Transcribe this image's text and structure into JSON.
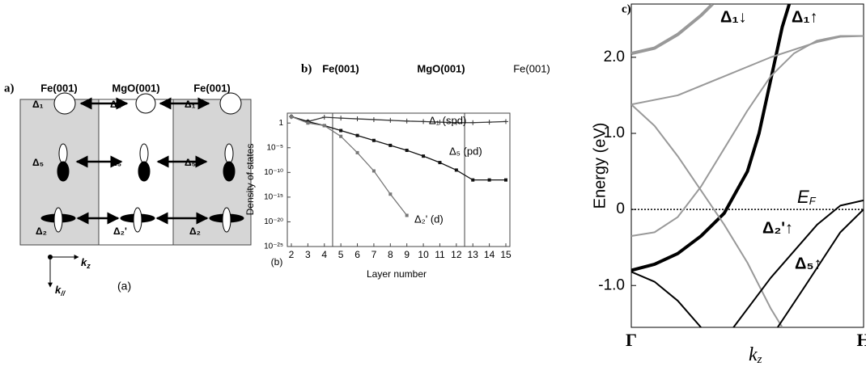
{
  "diagram": {
    "label": "a)",
    "regions": [
      "Fe(001)",
      "MgO(001)",
      "Fe(001)"
    ],
    "rows": [
      [
        "Δ₁",
        "Δ₁",
        "Δ₁"
      ],
      [
        "Δ₅",
        "Δ₅",
        "Δ₅"
      ],
      [
        "Δ₂",
        "Δ₂'",
        "Δ₂"
      ]
    ],
    "axis_right": {
      "text": "k",
      "sub": "z"
    },
    "axis_down": {
      "text": "k",
      "sub": "//"
    },
    "caption": "(a)"
  },
  "chart_data": [
    {
      "type": "line",
      "panel_label": "b)",
      "caption": "(b)",
      "regions": [
        "Fe(001)",
        "MgO(001)",
        "Fe(001)"
      ],
      "boundaries": [
        4.5,
        12.5
      ],
      "x_label": "Layer number",
      "y_label": "Density of states",
      "ylog": true,
      "x": [
        2,
        3,
        4,
        5,
        6,
        7,
        8,
        9,
        10,
        11,
        12,
        13,
        14,
        15
      ],
      "xlim": [
        2,
        15
      ],
      "xticks": [
        2,
        3,
        4,
        5,
        6,
        7,
        8,
        9,
        10,
        11,
        12,
        13,
        14,
        15
      ],
      "ylim": [
        1e-25,
        100
      ],
      "yticks": [
        1,
        {
          "value": 1e-05,
          "label": "10⁻⁵"
        },
        {
          "value": 1e-10,
          "label": "10⁻¹⁰"
        },
        {
          "value": 1e-15,
          "label": "10⁻¹⁵"
        },
        {
          "value": 1e-20,
          "label": "10⁻²⁰"
        },
        {
          "value": 1e-25,
          "label": "10⁻²⁵"
        }
      ],
      "series": [
        {
          "name": "Δ₁ (spd)",
          "color": "#333333",
          "marker": "plus",
          "values": [
            20,
            2,
            15,
            10,
            7,
            5,
            3.5,
            2.5,
            2,
            1.5,
            1.2,
            1.2,
            1.5,
            2
          ]
        },
        {
          "name": "Δ₅ (pd)",
          "color": "#111111",
          "marker": "square",
          "values": [
            20,
            2,
            0.3,
            0.03,
            0.003,
            0.0003,
            3e-05,
            3e-06,
            2e-07,
            1e-08,
            3e-10,
            3e-12,
            3e-12,
            3e-12
          ]
        },
        {
          "name": "Δ₂' (d)",
          "color": "#777777",
          "marker": "square",
          "values": [
            20,
            1,
            0.3,
            0.002,
            1e-06,
            2e-10,
            4e-15,
            2e-19,
            null,
            null,
            null,
            null,
            null,
            null
          ]
        }
      ]
    },
    {
      "type": "line",
      "panel_label": "c)",
      "y_label": "Energy (eV)",
      "x_label": {
        "text": "k",
        "sub": "z"
      },
      "xlim": [
        0,
        1
      ],
      "xticks": [
        {
          "value": 0,
          "label": "Γ"
        },
        {
          "value": 1,
          "label": "H"
        }
      ],
      "ylim": [
        -1.55,
        2.7
      ],
      "yticks": [
        {
          "value": -1,
          "label": "-1.0"
        },
        0,
        {
          "value": 1,
          "label": "1.0"
        },
        {
          "value": 2,
          "label": "2.0"
        }
      ],
      "fermi_level": 0,
      "fermi_label": {
        "text": "E",
        "sub": "F"
      },
      "annotations": [
        "Δ₁↓",
        "Δ₁↑",
        "Δ₂'↑",
        "Δ₅↑"
      ],
      "series": [
        {
          "color": "#999999",
          "width": 4,
          "x": [
            0,
            0.1,
            0.2,
            0.3,
            0.35
          ],
          "values": [
            2.05,
            2.12,
            2.3,
            2.55,
            2.7
          ]
        },
        {
          "color": "#000000",
          "width": 4,
          "x": [
            0,
            0.1,
            0.2,
            0.3,
            0.4,
            0.5,
            0.55,
            0.6,
            0.65,
            0.68
          ],
          "values": [
            -0.8,
            -0.72,
            -0.58,
            -0.35,
            -0.05,
            0.5,
            1.0,
            1.7,
            2.4,
            2.7
          ]
        },
        {
          "color": "#999999",
          "width": 2,
          "x": [
            0,
            0.1,
            0.2,
            0.3,
            0.4,
            0.5,
            0.6,
            0.65
          ],
          "values": [
            1.38,
            1.1,
            0.7,
            0.25,
            -0.2,
            -0.7,
            -1.3,
            -1.55
          ]
        },
        {
          "color": "#999999",
          "width": 2,
          "x": [
            0,
            0.2,
            0.4,
            0.6,
            0.8,
            0.9,
            1
          ],
          "values": [
            1.38,
            1.5,
            1.75,
            2.0,
            2.2,
            2.27,
            2.28
          ]
        },
        {
          "color": "#999999",
          "width": 2,
          "x": [
            0,
            0.1,
            0.2,
            0.3,
            0.4,
            0.5,
            0.6,
            0.7,
            0.8,
            0.9,
            1
          ],
          "values": [
            -0.35,
            -0.3,
            -0.1,
            0.3,
            0.8,
            1.3,
            1.75,
            2.05,
            2.22,
            2.28,
            2.28
          ]
        },
        {
          "color": "#000000",
          "width": 2,
          "x": [
            0,
            0.1,
            0.2,
            0.3
          ],
          "values": [
            -0.82,
            -0.95,
            -1.2,
            -1.55
          ]
        },
        {
          "color": "#000000",
          "width": 2,
          "x": [
            0.44,
            0.6,
            0.8,
            0.9,
            1
          ],
          "values": [
            -1.55,
            -0.9,
            -0.2,
            0.05,
            0.12
          ]
        },
        {
          "color": "#000000",
          "width": 2,
          "x": [
            0.63,
            0.75,
            0.9,
            1
          ],
          "values": [
            -1.55,
            -1.0,
            -0.3,
            0.0
          ]
        }
      ]
    }
  ]
}
